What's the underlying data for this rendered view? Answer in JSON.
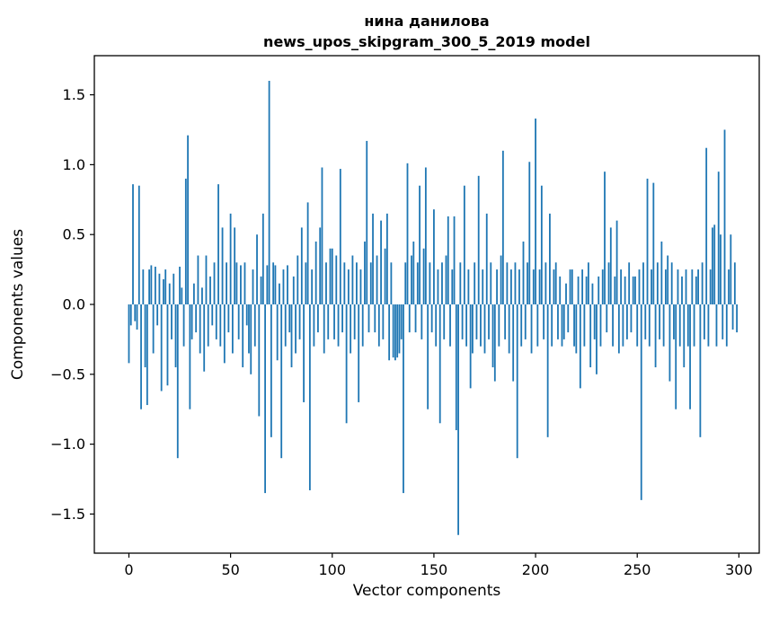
{
  "figure": {
    "title_line1": "нина данилова",
    "title_line2": "news_upos_skipgram_300_5_2019 model"
  },
  "chart_data": {
    "type": "bar",
    "title": "нина данилова\nnews_upos_skipgram_300_5_2019 model",
    "xlabel": "Vector components",
    "ylabel": "Components values",
    "bar_color": "#1f77b4",
    "grid": false,
    "legend": false,
    "xlim": [
      -17,
      310
    ],
    "ylim": [
      -1.78,
      1.78
    ],
    "xticks": [
      0,
      50,
      100,
      150,
      200,
      250,
      300
    ],
    "yticks": [
      -1.5,
      -1.0,
      -0.5,
      0.0,
      0.5,
      1.0,
      1.5
    ],
    "values": [
      -0.42,
      -0.15,
      0.86,
      -0.12,
      -0.18,
      0.85,
      -0.75,
      0.25,
      -0.45,
      -0.72,
      0.25,
      0.28,
      -0.35,
      0.27,
      -0.15,
      0.22,
      -0.62,
      0.18,
      0.25,
      -0.58,
      0.15,
      -0.25,
      0.22,
      -0.45,
      -1.1,
      0.27,
      0.12,
      -0.3,
      0.9,
      1.21,
      -0.75,
      -0.25,
      0.15,
      -0.2,
      0.35,
      -0.35,
      0.12,
      -0.48,
      0.35,
      -0.3,
      0.2,
      -0.15,
      0.3,
      -0.25,
      0.86,
      -0.3,
      0.55,
      -0.42,
      0.3,
      -0.2,
      0.65,
      -0.35,
      0.55,
      0.3,
      -0.25,
      0.28,
      -0.45,
      0.3,
      -0.15,
      -0.35,
      -0.5,
      0.25,
      -0.3,
      0.5,
      -0.8,
      0.2,
      0.65,
      -1.35,
      0.28,
      1.6,
      -0.95,
      0.3,
      0.28,
      -0.4,
      0.15,
      -1.1,
      0.25,
      -0.3,
      0.28,
      -0.2,
      -0.45,
      0.2,
      -0.35,
      0.35,
      -0.25,
      0.55,
      -0.7,
      0.3,
      0.73,
      -1.33,
      0.25,
      -0.3,
      0.45,
      -0.2,
      0.55,
      0.98,
      -0.35,
      0.3,
      -0.25,
      0.4,
      0.4,
      -0.25,
      0.35,
      -0.3,
      0.97,
      -0.2,
      0.3,
      -0.85,
      0.25,
      -0.35,
      0.35,
      -0.25,
      0.3,
      -0.7,
      0.25,
      -0.3,
      0.45,
      1.17,
      -0.2,
      0.3,
      0.65,
      -0.2,
      0.35,
      -0.3,
      0.6,
      -0.25,
      0.4,
      0.65,
      -0.4,
      0.3,
      -0.38,
      -0.4,
      -0.38,
      -0.35,
      -0.25,
      -1.35,
      0.3,
      1.01,
      -0.2,
      0.35,
      0.45,
      -0.2,
      0.3,
      0.85,
      -0.25,
      0.4,
      0.98,
      -0.75,
      0.3,
      -0.2,
      0.68,
      -0.3,
      0.25,
      -0.85,
      0.3,
      -0.25,
      0.35,
      0.63,
      -0.3,
      0.25,
      0.63,
      -0.9,
      -1.65,
      0.3,
      -0.25,
      0.85,
      -0.3,
      0.25,
      -0.6,
      -0.35,
      0.3,
      -0.25,
      0.92,
      -0.3,
      0.25,
      -0.35,
      0.65,
      -0.25,
      0.3,
      -0.45,
      -0.55,
      0.25,
      -0.3,
      0.35,
      1.1,
      -0.25,
      0.3,
      -0.35,
      0.25,
      -0.55,
      0.3,
      -1.1,
      0.25,
      -0.3,
      0.45,
      -0.25,
      0.3,
      1.02,
      -0.35,
      0.25,
      1.33,
      -0.3,
      0.25,
      0.85,
      -0.25,
      0.3,
      -0.95,
      0.65,
      -0.3,
      0.25,
      0.3,
      -0.25,
      0.2,
      -0.3,
      -0.25,
      0.15,
      -0.2,
      0.25,
      0.25,
      -0.3,
      -0.35,
      0.2,
      -0.6,
      0.25,
      -0.3,
      0.2,
      0.3,
      -0.45,
      0.15,
      -0.25,
      -0.5,
      0.2,
      -0.3,
      0.25,
      0.95,
      -0.2,
      0.3,
      0.55,
      -0.3,
      0.2,
      0.6,
      -0.35,
      0.25,
      -0.3,
      0.2,
      -0.25,
      0.3,
      -0.2,
      0.2,
      0.2,
      -0.3,
      0.25,
      -1.4,
      0.3,
      -0.25,
      0.9,
      -0.3,
      0.25,
      0.87,
      -0.45,
      0.3,
      -0.25,
      0.45,
      -0.3,
      0.25,
      0.35,
      -0.55,
      0.3,
      -0.25,
      -0.75,
      0.25,
      -0.3,
      0.2,
      -0.45,
      0.25,
      -0.3,
      -0.75,
      0.25,
      -0.3,
      0.2,
      0.25,
      -0.95,
      0.3,
      -0.25,
      1.12,
      -0.3,
      0.25,
      0.55,
      0.57,
      -0.3,
      0.95,
      0.5,
      -0.25,
      1.25,
      -0.3,
      0.25,
      0.5,
      -0.18,
      0.3,
      -0.2
    ]
  }
}
